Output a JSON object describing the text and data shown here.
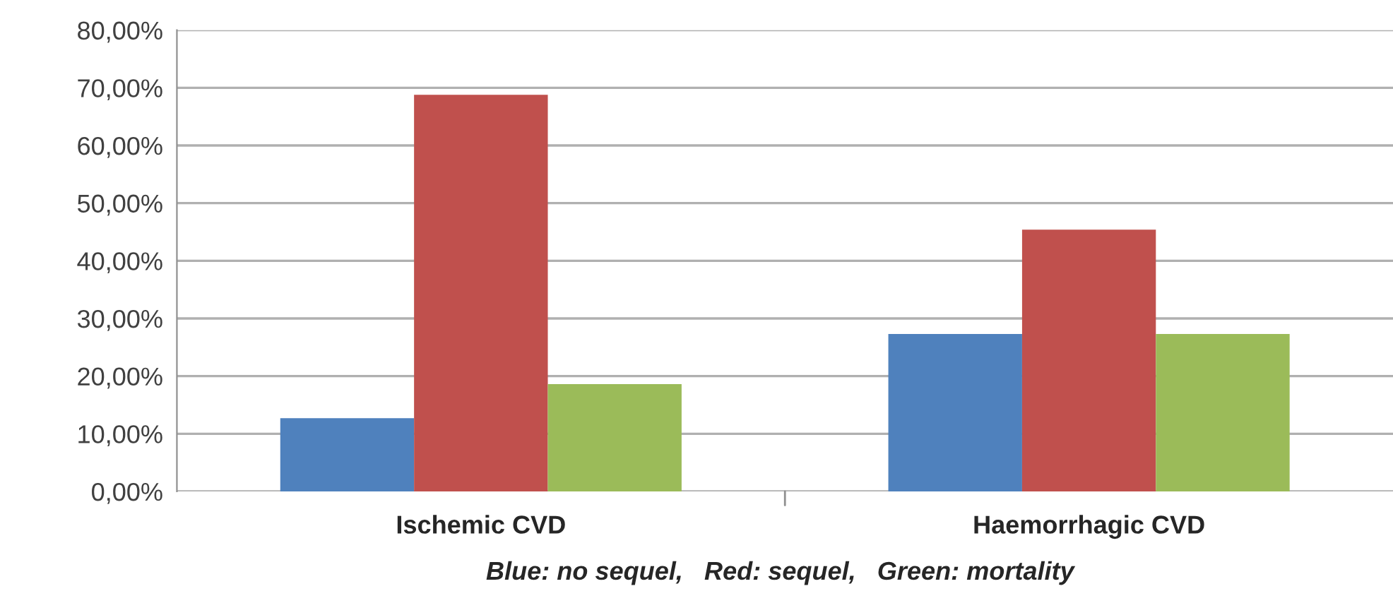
{
  "chart_data": {
    "type": "bar",
    "categories": [
      "Ischemic CVD",
      "Haemorrhagic CVD"
    ],
    "series": [
      {
        "color": "#4f81bd",
        "values": [
          12.7,
          27.3
        ]
      },
      {
        "color": "#c0504d",
        "values": [
          68.8,
          45.4
        ]
      },
      {
        "color": "#9bbb59",
        "values": [
          18.6,
          27.3
        ]
      }
    ],
    "ylim": [
      0,
      80
    ],
    "yticks": [
      {
        "value": 0,
        "label": "0,00%"
      },
      {
        "value": 10,
        "label": "10,00%"
      },
      {
        "value": 20,
        "label": "20,00%"
      },
      {
        "value": 30,
        "label": "30,00%"
      },
      {
        "value": 40,
        "label": "40,00%"
      },
      {
        "value": 50,
        "label": "50,00%"
      },
      {
        "value": 60,
        "label": "60,00%"
      },
      {
        "value": 70,
        "label": "70,00%"
      },
      {
        "value": 80,
        "label": "80,00%"
      }
    ],
    "grid": "y",
    "annotations": [
      "Blue: no sequel,   Red: sequel,   Green: mortality"
    ]
  }
}
